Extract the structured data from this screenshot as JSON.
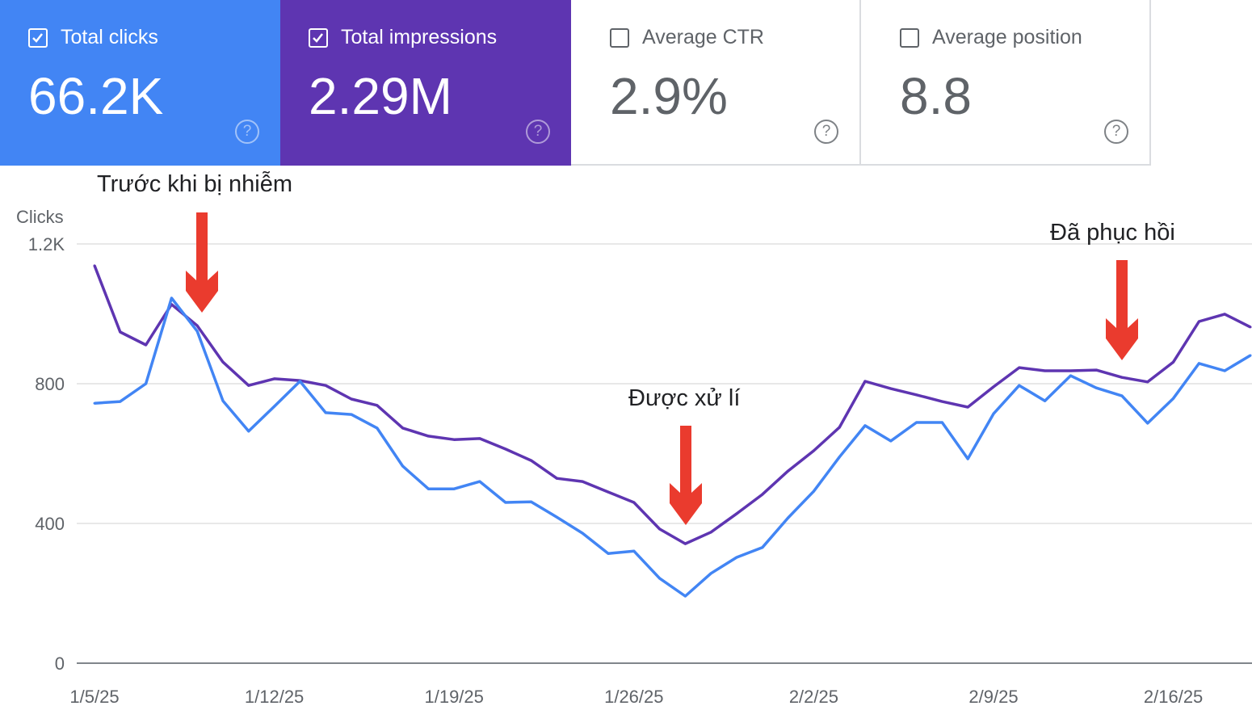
{
  "cards": [
    {
      "label": "Total clicks",
      "value": "66.2K",
      "checked": true,
      "color": "#4285f4"
    },
    {
      "label": "Total impressions",
      "value": "2.29M",
      "checked": true,
      "color": "#5e35b1"
    },
    {
      "label": "Average CTR",
      "value": "2.9%",
      "checked": false
    },
    {
      "label": "Average position",
      "value": "8.8",
      "checked": false
    }
  ],
  "annotations": [
    "Trước khi bị nhiễm",
    "Được xử lí",
    "Đã phục hồi"
  ],
  "annotation_color": "#ea3b2e",
  "chart_data": {
    "type": "line",
    "ylabel": "Clicks",
    "ylim": [
      0,
      1200
    ],
    "yticks": [
      "0",
      "400",
      "800",
      "1.2K"
    ],
    "ytick_values": [
      0,
      400,
      800,
      1200
    ],
    "xticks": [
      "1/5/25",
      "1/12/25",
      "1/19/25",
      "1/26/25",
      "2/2/25",
      "2/9/25",
      "2/16/25"
    ],
    "x_start": "1/5/25",
    "x_end": "2/19/25",
    "grid": true,
    "series": [
      {
        "name": "Total clicks",
        "color": "#4285f4",
        "values": [
          744,
          749,
          800,
          1045,
          950,
          751,
          664,
          735,
          807,
          717,
          712,
          673,
          564,
          499,
          499,
          520,
          460,
          462,
          418,
          372,
          314,
          321,
          243,
          192,
          257,
          303,
          331,
          416,
          492,
          590,
          680,
          636,
          689,
          689,
          585,
          714,
          795,
          751,
          823,
          788,
          765,
          687,
          758,
          858,
          837,
          881
        ]
      },
      {
        "name": "Total impressions",
        "color": "#5e35b1",
        "values": [
          1138,
          948,
          911,
          1027,
          966,
          862,
          795,
          814,
          809,
          795,
          756,
          738,
          673,
          650,
          640,
          643,
          613,
          580,
          529,
          520,
          490,
          460,
          384,
          342,
          375,
          428,
          483,
          550,
          608,
          675,
          807,
          786,
          768,
          749,
          733,
          791,
          846,
          837,
          837,
          839,
          818,
          805,
          862,
          978,
          999,
          962
        ]
      }
    ]
  }
}
